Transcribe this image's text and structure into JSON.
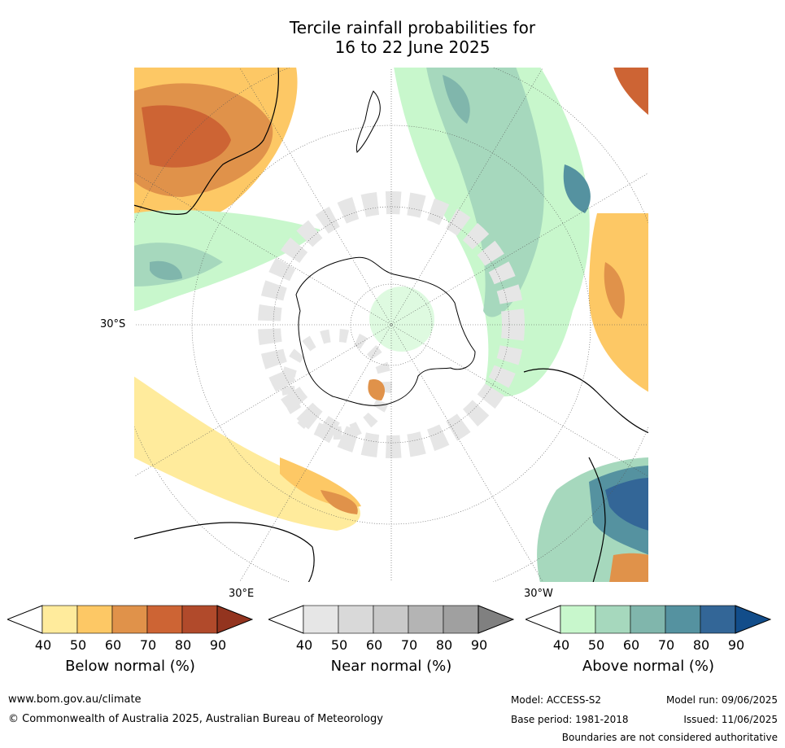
{
  "title_line1": "Tercile rainfall probabilities for",
  "title_line2": "16 to 22 June 2025",
  "map": {
    "lat_label": "30°S",
    "lon_label_east": "30°E",
    "lon_label_west": "30°W"
  },
  "colorbars": [
    {
      "label": "Below normal (%)",
      "ticks": [
        "40",
        "50",
        "60",
        "70",
        "80",
        "90"
      ],
      "colors": [
        "#ffffff",
        "#ffeb9c",
        "#fdc865",
        "#e0924a",
        "#cd6434",
        "#b14a2b",
        "#93341f"
      ]
    },
    {
      "label": "Near normal (%)",
      "ticks": [
        "40",
        "50",
        "60",
        "70",
        "80",
        "90"
      ],
      "colors": [
        "#ffffff",
        "#e6e6e6",
        "#d9d9d9",
        "#c9c9c9",
        "#b4b4b4",
        "#a0a0a0",
        "#808080"
      ]
    },
    {
      "label": "Above normal (%)",
      "ticks": [
        "40",
        "50",
        "60",
        "70",
        "80",
        "90"
      ],
      "colors": [
        "#ffffff",
        "#c8f7cc",
        "#a6d8bd",
        "#80b6ac",
        "#5592a0",
        "#336697",
        "#124d8a"
      ]
    }
  ],
  "footer": {
    "url": "www.bom.gov.au/climate",
    "copyright": "© Commonwealth of Australia 2025, Australian Bureau of Meteorology",
    "model": "Model: ACCESS-S2",
    "base_period": "Base period: 1981-2018",
    "model_run": "Model run: 09/06/2025",
    "issued": "Issued: 11/06/2025",
    "disclaimer": "Boundaries are not considered authoritative"
  }
}
